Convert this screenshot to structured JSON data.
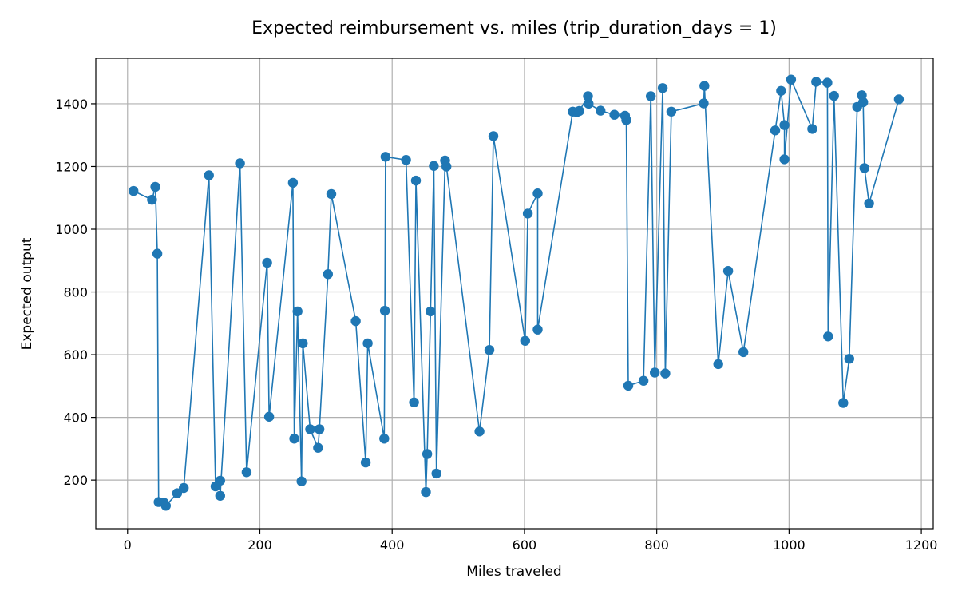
{
  "chart_data": {
    "type": "line",
    "title": "Expected reimbursement vs. miles (trip_duration_days = 1)",
    "xlabel": "Miles traveled",
    "ylabel": "Expected output",
    "xlim": [
      -48,
      1218
    ],
    "ylim": [
      45,
      1545
    ],
    "xticks": [
      0,
      200,
      400,
      600,
      800,
      1000,
      1200
    ],
    "yticks": [
      200,
      400,
      600,
      800,
      1000,
      1200,
      1400
    ],
    "grid": true,
    "legend": "none",
    "marker": "circle",
    "color": "#1f77b4",
    "series": [
      {
        "points": [
          [
            9,
            1122
          ],
          [
            37,
            1094
          ],
          [
            42,
            1135
          ],
          [
            45,
            922
          ],
          [
            47,
            130
          ],
          [
            55,
            128
          ],
          [
            58,
            118
          ],
          [
            75,
            158
          ],
          [
            85,
            175
          ],
          [
            123,
            1172
          ],
          [
            133,
            180
          ],
          [
            140,
            198
          ],
          [
            140,
            150
          ],
          [
            170,
            1210
          ],
          [
            180,
            225
          ],
          [
            211,
            893
          ],
          [
            214,
            402
          ],
          [
            250,
            1148
          ],
          [
            252,
            332
          ],
          [
            257,
            738
          ],
          [
            263,
            196
          ],
          [
            265,
            636
          ],
          [
            276,
            362
          ],
          [
            288,
            303
          ],
          [
            290,
            362
          ],
          [
            303,
            857
          ],
          [
            308,
            1112
          ],
          [
            345,
            707
          ],
          [
            360,
            256
          ],
          [
            363,
            636
          ],
          [
            388,
            332
          ],
          [
            389,
            740
          ],
          [
            390,
            1231
          ],
          [
            421,
            1221
          ],
          [
            433,
            448
          ],
          [
            436,
            1155
          ],
          [
            451,
            162
          ],
          [
            453,
            283
          ],
          [
            458,
            738
          ],
          [
            463,
            1202
          ],
          [
            467,
            221
          ],
          [
            480,
            1219
          ],
          [
            482,
            1200
          ],
          [
            532,
            355
          ],
          [
            547,
            615
          ],
          [
            553,
            1297
          ],
          [
            601,
            644
          ],
          [
            605,
            1050
          ],
          [
            620,
            1114
          ],
          [
            620,
            680
          ],
          [
            673,
            1375
          ],
          [
            679,
            1373
          ],
          [
            683,
            1377
          ],
          [
            696,
            1424
          ],
          [
            697,
            1400
          ],
          [
            715,
            1378
          ],
          [
            736,
            1365
          ],
          [
            752,
            1362
          ],
          [
            754,
            1348
          ],
          [
            757,
            501
          ],
          [
            780,
            517
          ],
          [
            791,
            1424
          ],
          [
            797,
            543
          ],
          [
            809,
            1450
          ],
          [
            813,
            540
          ],
          [
            822,
            1375
          ],
          [
            871,
            1401
          ],
          [
            872,
            1457
          ],
          [
            893,
            570
          ],
          [
            908,
            867
          ],
          [
            931,
            608
          ],
          [
            979,
            1315
          ],
          [
            988,
            1441
          ],
          [
            993,
            1332
          ],
          [
            993,
            1223
          ],
          [
            1003,
            1477
          ],
          [
            1035,
            1320
          ],
          [
            1041,
            1470
          ],
          [
            1058,
            1467
          ],
          [
            1059,
            658
          ],
          [
            1068,
            1425
          ],
          [
            1082,
            446
          ],
          [
            1091,
            587
          ],
          [
            1103,
            1390
          ],
          [
            1110,
            1427
          ],
          [
            1112,
            1405
          ],
          [
            1114,
            1195
          ],
          [
            1121,
            1082
          ],
          [
            1166,
            1414
          ]
        ]
      }
    ]
  }
}
